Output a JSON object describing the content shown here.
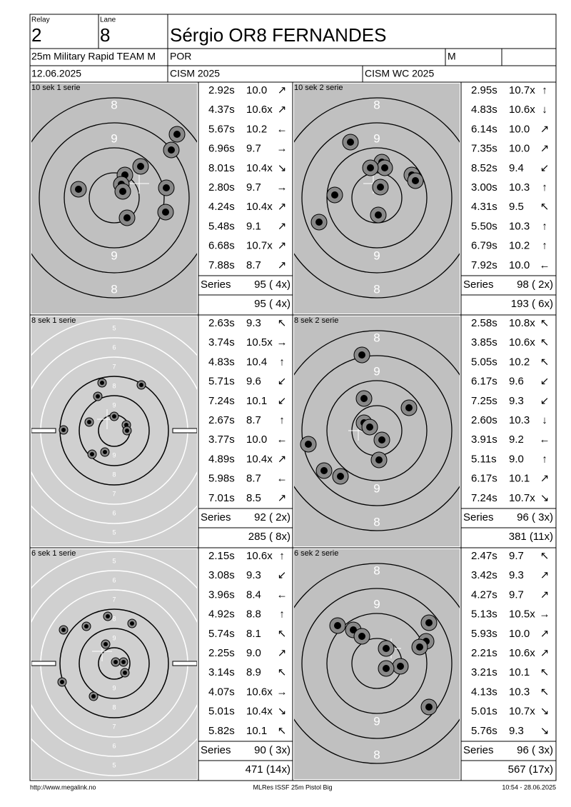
{
  "header": {
    "relay_label": "Relay",
    "relay": "2",
    "lane_label": "Lane",
    "lane": "8",
    "name": "Sérgio OR8 FERNANDES",
    "event": "25m Military Rapid TEAM M",
    "country": "POR",
    "gender": "M",
    "date": "12.06.2025",
    "competition": "CISM 2025",
    "match": "CISM WC 2025"
  },
  "panels": [
    {
      "title": "10 sek 1 serie",
      "ring_labels": [
        "8",
        "9",
        "9",
        "8"
      ],
      "shots": [
        [
          "2.92s",
          "10.0",
          "↗"
        ],
        [
          "4.37s",
          "10.6x",
          "↗"
        ],
        [
          "5.67s",
          "10.2",
          "←"
        ],
        [
          "6.96s",
          "9.7",
          "→"
        ],
        [
          "8.01s",
          "10.4x",
          "↘"
        ],
        [
          "2.80s",
          "9.7",
          "→"
        ],
        [
          "4.24s",
          "10.4x",
          "↗"
        ],
        [
          "5.48s",
          "9.1",
          "↗"
        ],
        [
          "6.68s",
          "10.7x",
          "↗"
        ],
        [
          "7.88s",
          "8.7",
          "↗"
        ]
      ],
      "series_label": "Series",
      "series": "95 ( 4x)",
      "total": "95 ( 4x)"
    },
    {
      "title": "10 sek 2 serie",
      "ring_labels": [
        "8",
        "9",
        "9",
        "8"
      ],
      "shots": [
        [
          "2.95s",
          "10.7x",
          "↑"
        ],
        [
          "4.83s",
          "10.6x",
          "↓"
        ],
        [
          "6.14s",
          "10.0",
          "↗"
        ],
        [
          "7.35s",
          "10.0",
          "↗"
        ],
        [
          "8.52s",
          "9.4",
          "↙"
        ],
        [
          "3.00s",
          "10.3",
          "↑"
        ],
        [
          "4.31s",
          "9.5",
          "↖"
        ],
        [
          "5.50s",
          "10.3",
          "↑"
        ],
        [
          "6.79s",
          "10.2",
          "↑"
        ],
        [
          "7.92s",
          "10.0",
          "←"
        ]
      ],
      "series_label": "Series",
      "series": "98 ( 2x)",
      "total": "193 ( 6x)"
    },
    {
      "title": "8 sek 1 serie",
      "ring_labels": [
        "5",
        "6",
        "7",
        "8",
        "9",
        "9",
        "8",
        "7",
        "6",
        "5"
      ],
      "shots": [
        [
          "2.63s",
          "9.3",
          "↖"
        ],
        [
          "3.74s",
          "10.5x",
          "→"
        ],
        [
          "4.83s",
          "10.4",
          "↑"
        ],
        [
          "5.71s",
          "9.6",
          "↙"
        ],
        [
          "7.24s",
          "10.1",
          "↙"
        ],
        [
          "2.67s",
          "8.7",
          "↑"
        ],
        [
          "3.77s",
          "10.0",
          "←"
        ],
        [
          "4.89s",
          "10.4x",
          "↗"
        ],
        [
          "5.98s",
          "8.7",
          "←"
        ],
        [
          "7.01s",
          "8.5",
          "↗"
        ]
      ],
      "series_label": "Series",
      "series": "92 ( 2x)",
      "total": "285 ( 8x)"
    },
    {
      "title": "8 sek 2 serie",
      "ring_labels": [
        "8",
        "9",
        "9",
        "8"
      ],
      "shots": [
        [
          "2.58s",
          "10.8x",
          "↖"
        ],
        [
          "3.85s",
          "10.6x",
          "↖"
        ],
        [
          "5.05s",
          "10.2",
          "↖"
        ],
        [
          "6.17s",
          "9.6",
          "↙"
        ],
        [
          "7.25s",
          "9.3",
          "↙"
        ],
        [
          "2.60s",
          "10.3",
          "↓"
        ],
        [
          "3.91s",
          "9.2",
          "←"
        ],
        [
          "5.11s",
          "9.0",
          "↑"
        ],
        [
          "6.17s",
          "10.1",
          "↗"
        ],
        [
          "7.24s",
          "10.7x",
          "↘"
        ]
      ],
      "series_label": "Series",
      "series": "96 ( 3x)",
      "total": "381 (11x)"
    },
    {
      "title": "6 sek 1 serie",
      "ring_labels": [
        "5",
        "6",
        "7",
        "8",
        "9",
        "9",
        "8",
        "7",
        "6",
        "5"
      ],
      "shots": [
        [
          "2.15s",
          "10.6x",
          "↑"
        ],
        [
          "3.08s",
          "9.3",
          "↙"
        ],
        [
          "3.96s",
          "8.4",
          "←"
        ],
        [
          "4.92s",
          "8.8",
          "↑"
        ],
        [
          "5.74s",
          "8.1",
          "↖"
        ],
        [
          "2.25s",
          "9.0",
          "↗"
        ],
        [
          "3.14s",
          "8.9",
          "↖"
        ],
        [
          "4.07s",
          "10.6x",
          "→"
        ],
        [
          "5.01s",
          "10.4x",
          "↘"
        ],
        [
          "5.82s",
          "10.1",
          "↖"
        ]
      ],
      "series_label": "Series",
      "series": "90 ( 3x)",
      "total": "471 (14x)"
    },
    {
      "title": "6 sek 2 serie",
      "ring_labels": [
        "8",
        "9",
        "9",
        "8"
      ],
      "shots": [
        [
          "2.47s",
          "9.7",
          "↖"
        ],
        [
          "3.42s",
          "9.3",
          "↗"
        ],
        [
          "4.27s",
          "9.7",
          "↗"
        ],
        [
          "5.13s",
          "10.5x",
          "→"
        ],
        [
          "5.93s",
          "10.0",
          "↗"
        ],
        [
          "2.21s",
          "10.6x",
          "↗"
        ],
        [
          "3.21s",
          "10.1",
          "↖"
        ],
        [
          "4.13s",
          "10.3",
          "↖"
        ],
        [
          "5.01s",
          "10.7x",
          "↘"
        ],
        [
          "5.76s",
          "9.3",
          "↘"
        ]
      ],
      "series_label": "Series",
      "series": "96 ( 3x)",
      "total": "567 (17x)"
    }
  ],
  "footer": {
    "url": "http://www.megalink.no",
    "software": "MLRes ISSF 25m Pistol Big",
    "timestamp": "10:54 - 28.06.2025"
  }
}
